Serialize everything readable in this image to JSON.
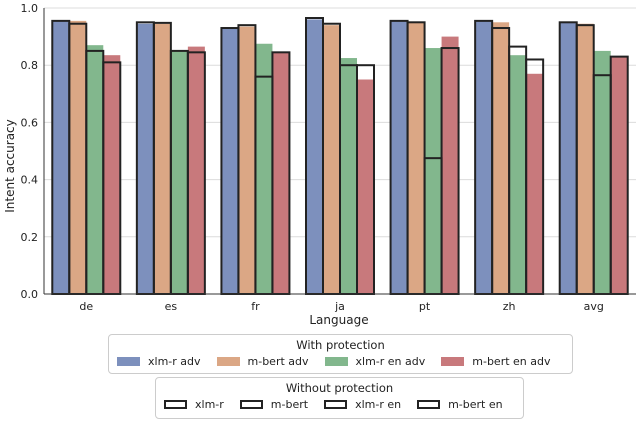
{
  "chart_data": {
    "type": "bar",
    "xlabel": "Language",
    "ylabel": "Intent accuracy",
    "ylim": [
      0,
      1.0
    ],
    "yticks": [
      "0.0",
      "0.2",
      "0.4",
      "0.6",
      "0.8",
      "1.0"
    ],
    "grid": "horizontal",
    "categories": [
      "de",
      "es",
      "fr",
      "ja",
      "pt",
      "zh",
      "avg"
    ],
    "with_protection": {
      "title": "With protection",
      "series": [
        {
          "name": "xlm-r adv",
          "color": "#7d90bd",
          "values": [
            0.955,
            0.945,
            0.93,
            0.96,
            0.955,
            0.955,
            0.95
          ]
        },
        {
          "name": "m-bert adv",
          "color": "#dba785",
          "values": [
            0.955,
            0.945,
            0.935,
            0.94,
            0.95,
            0.95,
            0.945
          ]
        },
        {
          "name": "xlm-r en adv",
          "color": "#82b78d",
          "values": [
            0.87,
            0.85,
            0.875,
            0.825,
            0.86,
            0.835,
            0.85
          ]
        },
        {
          "name": "m-bert en adv",
          "color": "#c8797c",
          "values": [
            0.835,
            0.865,
            0.845,
            0.75,
            0.9,
            0.77,
            0.83
          ]
        }
      ]
    },
    "without_protection": {
      "title": "Without protection",
      "series": [
        {
          "name": "xlm-r",
          "values": [
            0.955,
            0.95,
            0.93,
            0.965,
            0.955,
            0.955,
            0.95
          ]
        },
        {
          "name": "m-bert",
          "values": [
            0.945,
            0.948,
            0.94,
            0.945,
            0.95,
            0.93,
            0.94
          ]
        },
        {
          "name": "xlm-r en",
          "values": [
            0.85,
            0.85,
            0.76,
            0.8,
            0.475,
            0.865,
            0.765
          ]
        },
        {
          "name": "m-bert en",
          "values": [
            0.81,
            0.845,
            0.845,
            0.8,
            0.86,
            0.82,
            0.83
          ]
        }
      ]
    },
    "legend_position": "bottom-center"
  }
}
